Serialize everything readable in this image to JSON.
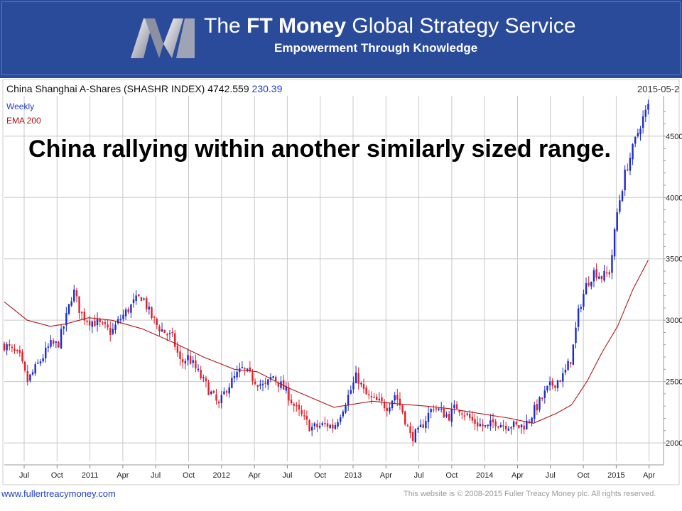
{
  "banner": {
    "title_prefix": "The ",
    "title_bold": "FT Money",
    "title_suffix": " Global Strategy Service",
    "subtitle": "Empowerment Through Knowledge"
  },
  "chart_header": {
    "name": "China Shanghai A-Shares (SHASHR INDEX)",
    "last": "4742.559",
    "change": "230.39",
    "date": "2015-05-2"
  },
  "annotation": "China rallying within another similarly sized range.",
  "footer": {
    "site": "www.fullertreacymoney.com",
    "copyright": "This website is © 2008-2015 Fuller Treacy Money plc. All rights reserved."
  },
  "colors": {
    "up": "#1a2bcc",
    "down": "#e0202a",
    "ema": "#b01818",
    "grid": "#c8c8c8",
    "banner": "#2a4a9a"
  },
  "chart_data": {
    "type": "candlestick",
    "title": "China Shanghai A-Shares (SHASHR INDEX) 4742.559 230.39",
    "frequency": "Weekly",
    "legend": [
      "Weekly",
      "EMA 200"
    ],
    "x_ticks": [
      "Jul",
      "Oct",
      "2011",
      "Apr",
      "Jul",
      "Oct",
      "2012",
      "Apr",
      "Jul",
      "Oct",
      "2013",
      "Apr",
      "Jul",
      "Oct",
      "2014",
      "Apr",
      "Jul",
      "Oct",
      "2015",
      "Apr"
    ],
    "y_ticks": [
      "2000",
      "2500",
      "3000",
      "3500",
      "4000",
      "4500"
    ],
    "ylim": [
      1850,
      4800
    ],
    "close_path": [
      [
        0,
        2800
      ],
      [
        2,
        2700
      ],
      [
        3,
        2500
      ],
      [
        4,
        2600
      ],
      [
        6,
        2800
      ],
      [
        7,
        2800
      ],
      [
        8,
        3000
      ],
      [
        9,
        3250
      ],
      [
        10,
        3050
      ],
      [
        11,
        3000
      ],
      [
        12,
        2980
      ],
      [
        14,
        2900
      ],
      [
        15,
        3000
      ],
      [
        17,
        3150
      ],
      [
        18,
        3200
      ],
      [
        19,
        3050
      ],
      [
        20,
        2950
      ],
      [
        22,
        2850
      ],
      [
        23,
        2650
      ],
      [
        24,
        2700
      ],
      [
        25,
        2600
      ],
      [
        26,
        2500
      ],
      [
        27,
        2400
      ],
      [
        28,
        2300
      ],
      [
        29,
        2450
      ],
      [
        31,
        2600
      ],
      [
        33,
        2500
      ],
      [
        34,
        2450
      ],
      [
        35,
        2550
      ],
      [
        37,
        2400
      ],
      [
        38,
        2280
      ],
      [
        39,
        2200
      ],
      [
        40,
        2120
      ],
      [
        42,
        2150
      ],
      [
        43,
        2130
      ],
      [
        45,
        2400
      ],
      [
        46,
        2550
      ],
      [
        47,
        2400
      ],
      [
        48,
        2350
      ],
      [
        50,
        2300
      ],
      [
        51,
        2400
      ],
      [
        52,
        2250
      ],
      [
        53,
        2050
      ],
      [
        54,
        2080
      ],
      [
        55,
        2200
      ],
      [
        56,
        2300
      ],
      [
        57,
        2250
      ],
      [
        58,
        2220
      ],
      [
        59,
        2300
      ],
      [
        60,
        2250
      ],
      [
        61,
        2180
      ],
      [
        62,
        2150
      ],
      [
        63,
        2120
      ],
      [
        64,
        2180
      ],
      [
        65,
        2150
      ],
      [
        66,
        2150
      ],
      [
        67,
        2130
      ],
      [
        68,
        2150
      ],
      [
        69,
        2250
      ],
      [
        70,
        2350
      ],
      [
        71,
        2450
      ],
      [
        72,
        2500
      ],
      [
        73,
        2550
      ],
      [
        74,
        2700
      ],
      [
        75,
        3100
      ],
      [
        76,
        3300
      ],
      [
        77,
        3400
      ],
      [
        78,
        3350
      ],
      [
        79,
        3400
      ],
      [
        80,
        3900
      ],
      [
        81,
        4200
      ],
      [
        82,
        4400
      ],
      [
        83,
        4600
      ],
      [
        84,
        4742
      ]
    ],
    "ema_200_path": [
      [
        0,
        3150
      ],
      [
        3,
        3000
      ],
      [
        6,
        2950
      ],
      [
        8,
        2970
      ],
      [
        11,
        3020
      ],
      [
        14,
        3000
      ],
      [
        18,
        2930
      ],
      [
        22,
        2820
      ],
      [
        26,
        2700
      ],
      [
        30,
        2600
      ],
      [
        33,
        2580
      ],
      [
        37,
        2450
      ],
      [
        40,
        2370
      ],
      [
        43,
        2290
      ],
      [
        46,
        2320
      ],
      [
        48,
        2340
      ],
      [
        51,
        2320
      ],
      [
        55,
        2300
      ],
      [
        58,
        2280
      ],
      [
        62,
        2240
      ],
      [
        66,
        2200
      ],
      [
        69,
        2160
      ],
      [
        72,
        2240
      ],
      [
        74,
        2310
      ],
      [
        76,
        2500
      ],
      [
        78,
        2740
      ],
      [
        80,
        2950
      ],
      [
        82,
        3250
      ],
      [
        84,
        3490
      ]
    ]
  }
}
